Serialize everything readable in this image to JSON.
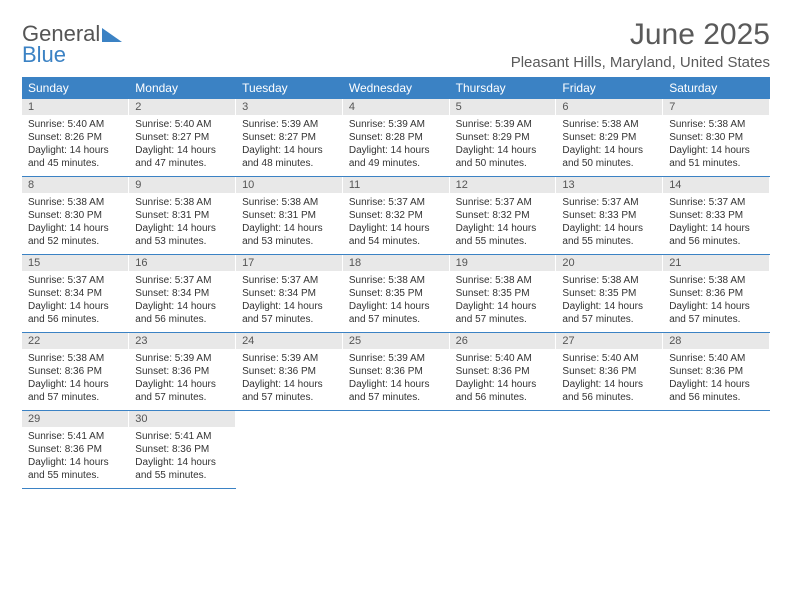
{
  "logo": {
    "line1": "General",
    "line2": "Blue"
  },
  "title": "June 2025",
  "subtitle": "Pleasant Hills, Maryland, United States",
  "colors": {
    "header_bg": "#3b82c4",
    "header_text": "#ffffff",
    "daynum_bg": "#e8e8e8",
    "text": "#333333",
    "title_text": "#5a5a5a",
    "rule": "#3b82c4"
  },
  "weekdays": [
    "Sunday",
    "Monday",
    "Tuesday",
    "Wednesday",
    "Thursday",
    "Friday",
    "Saturday"
  ],
  "days": [
    {
      "n": 1,
      "sunrise": "5:40 AM",
      "sunset": "8:26 PM",
      "daylight": "14 hours and 45 minutes."
    },
    {
      "n": 2,
      "sunrise": "5:40 AM",
      "sunset": "8:27 PM",
      "daylight": "14 hours and 47 minutes."
    },
    {
      "n": 3,
      "sunrise": "5:39 AM",
      "sunset": "8:27 PM",
      "daylight": "14 hours and 48 minutes."
    },
    {
      "n": 4,
      "sunrise": "5:39 AM",
      "sunset": "8:28 PM",
      "daylight": "14 hours and 49 minutes."
    },
    {
      "n": 5,
      "sunrise": "5:39 AM",
      "sunset": "8:29 PM",
      "daylight": "14 hours and 50 minutes."
    },
    {
      "n": 6,
      "sunrise": "5:38 AM",
      "sunset": "8:29 PM",
      "daylight": "14 hours and 50 minutes."
    },
    {
      "n": 7,
      "sunrise": "5:38 AM",
      "sunset": "8:30 PM",
      "daylight": "14 hours and 51 minutes."
    },
    {
      "n": 8,
      "sunrise": "5:38 AM",
      "sunset": "8:30 PM",
      "daylight": "14 hours and 52 minutes."
    },
    {
      "n": 9,
      "sunrise": "5:38 AM",
      "sunset": "8:31 PM",
      "daylight": "14 hours and 53 minutes."
    },
    {
      "n": 10,
      "sunrise": "5:38 AM",
      "sunset": "8:31 PM",
      "daylight": "14 hours and 53 minutes."
    },
    {
      "n": 11,
      "sunrise": "5:37 AM",
      "sunset": "8:32 PM",
      "daylight": "14 hours and 54 minutes."
    },
    {
      "n": 12,
      "sunrise": "5:37 AM",
      "sunset": "8:32 PM",
      "daylight": "14 hours and 55 minutes."
    },
    {
      "n": 13,
      "sunrise": "5:37 AM",
      "sunset": "8:33 PM",
      "daylight": "14 hours and 55 minutes."
    },
    {
      "n": 14,
      "sunrise": "5:37 AM",
      "sunset": "8:33 PM",
      "daylight": "14 hours and 56 minutes."
    },
    {
      "n": 15,
      "sunrise": "5:37 AM",
      "sunset": "8:34 PM",
      "daylight": "14 hours and 56 minutes."
    },
    {
      "n": 16,
      "sunrise": "5:37 AM",
      "sunset": "8:34 PM",
      "daylight": "14 hours and 56 minutes."
    },
    {
      "n": 17,
      "sunrise": "5:37 AM",
      "sunset": "8:34 PM",
      "daylight": "14 hours and 57 minutes."
    },
    {
      "n": 18,
      "sunrise": "5:38 AM",
      "sunset": "8:35 PM",
      "daylight": "14 hours and 57 minutes."
    },
    {
      "n": 19,
      "sunrise": "5:38 AM",
      "sunset": "8:35 PM",
      "daylight": "14 hours and 57 minutes."
    },
    {
      "n": 20,
      "sunrise": "5:38 AM",
      "sunset": "8:35 PM",
      "daylight": "14 hours and 57 minutes."
    },
    {
      "n": 21,
      "sunrise": "5:38 AM",
      "sunset": "8:36 PM",
      "daylight": "14 hours and 57 minutes."
    },
    {
      "n": 22,
      "sunrise": "5:38 AM",
      "sunset": "8:36 PM",
      "daylight": "14 hours and 57 minutes."
    },
    {
      "n": 23,
      "sunrise": "5:39 AM",
      "sunset": "8:36 PM",
      "daylight": "14 hours and 57 minutes."
    },
    {
      "n": 24,
      "sunrise": "5:39 AM",
      "sunset": "8:36 PM",
      "daylight": "14 hours and 57 minutes."
    },
    {
      "n": 25,
      "sunrise": "5:39 AM",
      "sunset": "8:36 PM",
      "daylight": "14 hours and 57 minutes."
    },
    {
      "n": 26,
      "sunrise": "5:40 AM",
      "sunset": "8:36 PM",
      "daylight": "14 hours and 56 minutes."
    },
    {
      "n": 27,
      "sunrise": "5:40 AM",
      "sunset": "8:36 PM",
      "daylight": "14 hours and 56 minutes."
    },
    {
      "n": 28,
      "sunrise": "5:40 AM",
      "sunset": "8:36 PM",
      "daylight": "14 hours and 56 minutes."
    },
    {
      "n": 29,
      "sunrise": "5:41 AM",
      "sunset": "8:36 PM",
      "daylight": "14 hours and 55 minutes."
    },
    {
      "n": 30,
      "sunrise": "5:41 AM",
      "sunset": "8:36 PM",
      "daylight": "14 hours and 55 minutes."
    }
  ],
  "labels": {
    "sunrise": "Sunrise:",
    "sunset": "Sunset:",
    "daylight": "Daylight:"
  },
  "layout": {
    "start_weekday": 0,
    "rows": 5,
    "cols": 7
  }
}
